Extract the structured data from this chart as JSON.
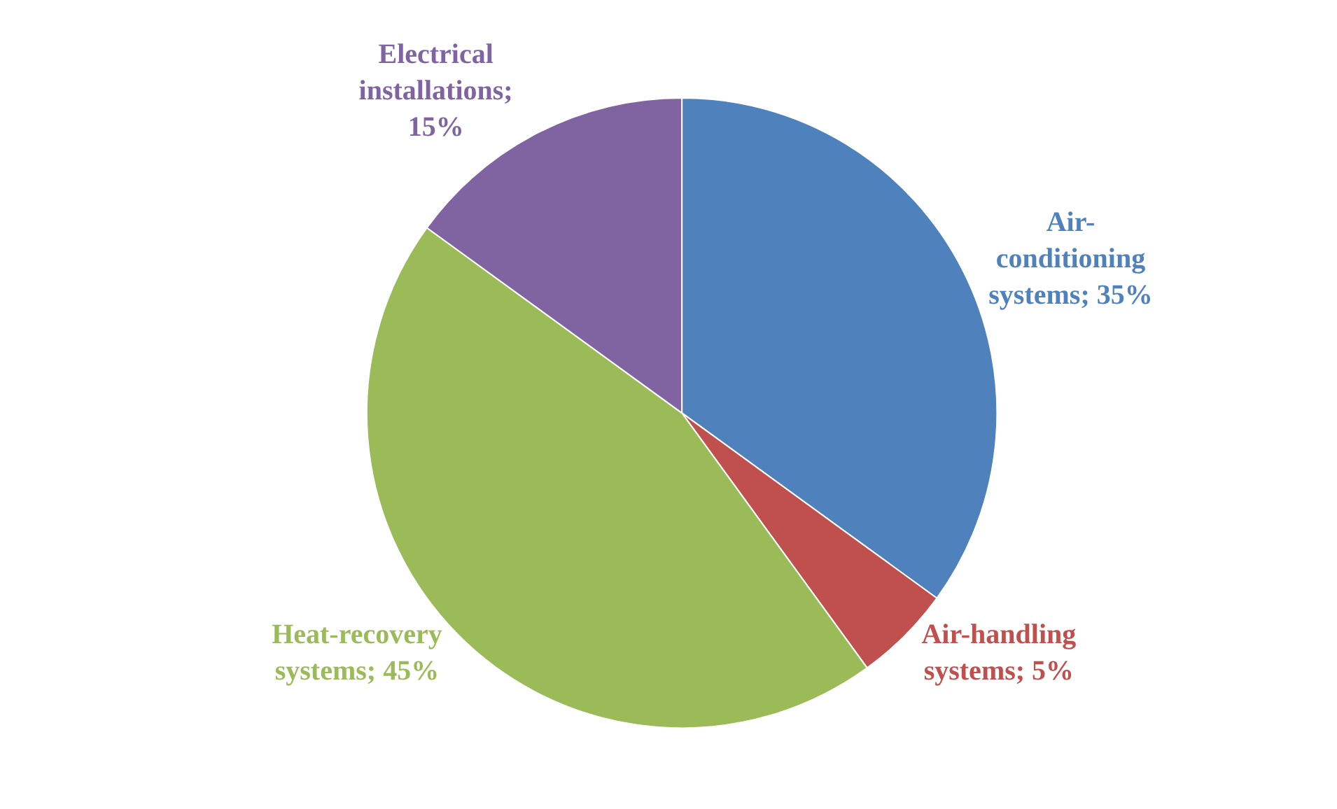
{
  "chart_data": {
    "type": "pie",
    "categories": [
      "Air-conditioning systems",
      "Air-handling systems",
      "Heat-recovery systems",
      "Electrical installations"
    ],
    "values": [
      35,
      5,
      45,
      15
    ],
    "colors": [
      "#4f81bd",
      "#c0504d",
      "#9bbb59",
      "#8064a2"
    ],
    "value_labels": [
      "; 35%",
      "; 5%",
      "; 45%",
      "; 15%"
    ],
    "legend": false
  }
}
